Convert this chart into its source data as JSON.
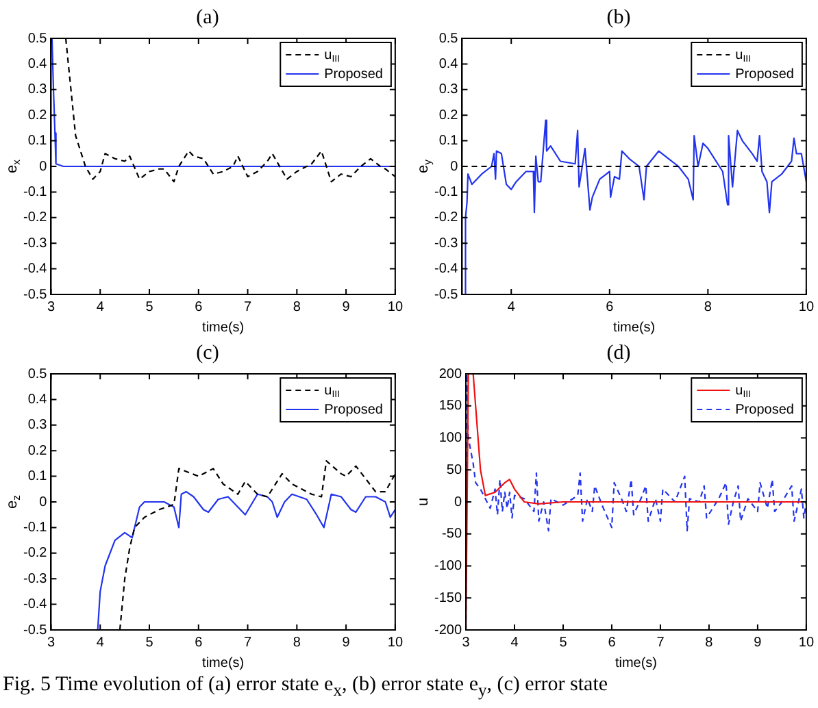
{
  "chart_data": [
    {
      "type": "line",
      "title": "(a)",
      "xlabel": "time(s)",
      "ylabel": "e$_{x}$",
      "xlim": [
        3,
        10
      ],
      "xticks": [
        3,
        4,
        5,
        6,
        7,
        8,
        9,
        10
      ],
      "ylim": [
        -0.5,
        0.5
      ],
      "yticks": [
        -0.5,
        -0.4,
        -0.3,
        -0.2,
        -0.1,
        0,
        0.1,
        0.2,
        0.3,
        0.4,
        0.5
      ],
      "grid": false,
      "legend": "top right",
      "annotations": [
        "Fig. 5 Time evolution of (a) error state e$_{x}$, (b) error state e$_{y}$, (c) error state"
      ],
      "series": [
        {
          "name": "u$_{III}$",
          "color": "#000000",
          "line_style": "dashed",
          "x": [
            3.3,
            3.5,
            3.7,
            3.85,
            4.0,
            4.1,
            4.3,
            4.5,
            4.6,
            4.8,
            5.0,
            5.2,
            5.3,
            5.5,
            5.6,
            5.8,
            5.9,
            6.1,
            6.3,
            6.5,
            6.7,
            6.8,
            7.0,
            7.2,
            7.4,
            7.5,
            7.8,
            8.0,
            8.3,
            8.5,
            8.7,
            8.9,
            9.1,
            9.3,
            9.5,
            9.7,
            9.8,
            10.0
          ],
          "values": [
            0.5,
            0.12,
            0.0,
            -0.05,
            -0.02,
            0.05,
            0.03,
            0.02,
            0.04,
            -0.05,
            -0.02,
            -0.01,
            -0.01,
            -0.06,
            0.0,
            0.06,
            0.04,
            0.03,
            -0.03,
            -0.02,
            0.0,
            0.04,
            -0.04,
            -0.02,
            0.02,
            0.05,
            -0.05,
            -0.02,
            0.01,
            0.06,
            -0.06,
            -0.03,
            -0.04,
            0.0,
            0.03,
            0.0,
            -0.01,
            -0.04
          ]
        },
        {
          "name": "Proposed",
          "color": "#2233ee",
          "line_style": "solid",
          "x": [
            3.02,
            3.05,
            3.08,
            3.1,
            3.25,
            10.0
          ],
          "values": [
            0.5,
            0.3,
            0.13,
            0.01,
            0,
            0
          ]
        }
      ]
    },
    {
      "type": "line",
      "title": "(b)",
      "xlabel": "time(s)",
      "ylabel": "e$_{y}$",
      "xlim": [
        3,
        10
      ],
      "xticks": [
        4,
        6,
        8,
        10
      ],
      "ylim": [
        -0.5,
        0.5
      ],
      "yticks": [
        -0.5,
        -0.4,
        -0.3,
        -0.2,
        -0.1,
        0,
        0.1,
        0.2,
        0.3,
        0.4,
        0.5
      ],
      "grid": false,
      "legend": "top right",
      "series": [
        {
          "name": "u$_{III}$",
          "color": "#000000",
          "line_style": "dashed",
          "x": [
            3,
            10
          ],
          "values": [
            0,
            0
          ]
        },
        {
          "name": "Proposed",
          "color": "#2233ee",
          "line_style": "solid",
          "x": [
            3.05,
            3.07,
            3.1,
            3.12,
            3.2,
            3.4,
            3.6,
            3.65,
            3.68,
            3.7,
            3.8,
            3.9,
            4.0,
            4.1,
            4.3,
            4.45,
            4.47,
            4.5,
            4.55,
            4.6,
            4.7,
            4.72,
            4.8,
            5.0,
            5.3,
            5.35,
            5.38,
            5.5,
            5.6,
            5.65,
            5.8,
            6.0,
            6.02,
            6.1,
            6.2,
            6.25,
            6.4,
            6.6,
            6.7,
            6.75,
            7.0,
            7.2,
            7.4,
            7.6,
            7.7,
            7.72,
            7.8,
            7.9,
            8.0,
            8.3,
            8.4,
            8.42,
            8.5,
            8.6,
            8.7,
            8.9,
            9.0,
            9.05,
            9.1,
            9.2,
            9.25,
            9.3,
            9.5,
            9.7,
            9.75,
            9.8,
            9.9,
            10.0
          ],
          "values": [
            -0.5,
            -0.2,
            -0.14,
            -0.03,
            -0.07,
            -0.03,
            0.0,
            0.05,
            -0.05,
            0.06,
            0.05,
            -0.07,
            -0.09,
            -0.06,
            -0.02,
            -0.02,
            -0.18,
            0.04,
            -0.06,
            -0.06,
            0.18,
            0.06,
            0.08,
            0.02,
            0.01,
            0.14,
            -0.08,
            0.07,
            -0.17,
            -0.12,
            -0.05,
            -0.02,
            -0.12,
            -0.04,
            -0.05,
            0.06,
            0.03,
            0.0,
            -0.13,
            0.0,
            0.06,
            0.03,
            0.0,
            -0.05,
            -0.13,
            0.12,
            0.0,
            0.09,
            0.07,
            -0.02,
            -0.15,
            0.12,
            -0.08,
            0.14,
            0.1,
            0.05,
            0.02,
            0.12,
            -0.02,
            -0.06,
            -0.18,
            -0.06,
            -0.03,
            0.02,
            0.11,
            0.05,
            0.05,
            -0.06
          ]
        }
      ]
    },
    {
      "type": "line",
      "title": "(c)",
      "xlabel": "time(s)",
      "ylabel": "e$_{z}$",
      "xlim": [
        3,
        10
      ],
      "xticks": [
        3,
        4,
        5,
        6,
        7,
        8,
        9,
        10
      ],
      "ylim": [
        -0.5,
        0.5
      ],
      "yticks": [
        -0.5,
        -0.4,
        -0.3,
        -0.2,
        -0.1,
        0,
        0.1,
        0.2,
        0.3,
        0.4,
        0.5
      ],
      "grid": false,
      "legend": "top right",
      "series": [
        {
          "name": "u$_{III}$",
          "color": "#000000",
          "line_style": "dashed",
          "x": [
            4.4,
            4.5,
            4.6,
            4.7,
            4.9,
            5.2,
            5.5,
            5.6,
            6.0,
            6.3,
            6.5,
            6.8,
            6.95,
            7.2,
            7.4,
            7.7,
            7.9,
            8.3,
            8.5,
            8.6,
            8.9,
            9.0,
            9.2,
            9.6,
            9.8,
            10.0
          ],
          "values": [
            -0.5,
            -0.3,
            -0.18,
            -0.1,
            -0.06,
            -0.03,
            -0.01,
            0.13,
            0.1,
            0.13,
            0.07,
            0.03,
            0.08,
            0.03,
            0.02,
            0.11,
            0.07,
            0.03,
            0.02,
            0.16,
            0.11,
            0.1,
            0.14,
            0.04,
            0.04,
            0.11
          ]
        },
        {
          "name": "Proposed",
          "color": "#2233ee",
          "line_style": "solid",
          "x": [
            3.95,
            4.0,
            4.1,
            4.3,
            4.5,
            4.65,
            4.8,
            4.9,
            5.3,
            5.5,
            5.6,
            5.65,
            5.75,
            5.9,
            6.1,
            6.2,
            6.4,
            6.6,
            6.8,
            6.95,
            7.2,
            7.4,
            7.5,
            7.6,
            7.75,
            7.9,
            8.2,
            8.4,
            8.55,
            8.7,
            8.9,
            9.1,
            9.2,
            9.4,
            9.6,
            9.8,
            9.9,
            10.0
          ],
          "values": [
            -0.5,
            -0.35,
            -0.25,
            -0.15,
            -0.12,
            -0.14,
            -0.02,
            0.0,
            0.0,
            -0.02,
            -0.1,
            0.03,
            0.04,
            0.02,
            -0.03,
            -0.04,
            0.01,
            0.02,
            -0.02,
            -0.05,
            0.03,
            0.02,
            0.0,
            -0.06,
            0.0,
            0.03,
            0.01,
            -0.05,
            -0.1,
            0.03,
            0.02,
            -0.03,
            -0.04,
            0.02,
            0.02,
            0.0,
            -0.06,
            -0.03
          ]
        }
      ]
    },
    {
      "type": "line",
      "title": "(d)",
      "xlabel": "time(s)",
      "ylabel": "u",
      "xlim": [
        3,
        10
      ],
      "xticks": [
        3,
        4,
        5,
        6,
        7,
        8,
        9,
        10
      ],
      "ylim": [
        -200,
        200
      ],
      "yticks": [
        -200,
        -150,
        -100,
        -50,
        0,
        50,
        100,
        150,
        200
      ],
      "grid": false,
      "legend": "top right",
      "series": [
        {
          "name": "u$_{III}$",
          "color": "#ee1111",
          "line_style": "solid",
          "x": [
            3.0,
            3.05,
            3.15,
            3.2,
            3.3,
            3.4,
            3.6,
            3.8,
            3.9,
            4.0,
            4.2,
            4.5,
            5,
            6,
            7,
            8,
            9,
            10
          ],
          "values": [
            -200,
            200,
            200,
            150,
            50,
            10,
            15,
            30,
            35,
            20,
            0,
            -3,
            0,
            0,
            0,
            0,
            0,
            0
          ]
        },
        {
          "name": "Proposed",
          "color": "#2233ee",
          "line_style": "dashed",
          "x": [
            3.0,
            3.02,
            3.05,
            3.1,
            3.15,
            3.2,
            3.3,
            3.4,
            3.5,
            3.6,
            3.65,
            3.7,
            3.75,
            3.8,
            3.85,
            3.9,
            3.95,
            4.0,
            4.2,
            4.4,
            4.45,
            4.5,
            4.6,
            4.7,
            4.75,
            5.0,
            5.3,
            5.35,
            5.4,
            5.5,
            5.6,
            5.65,
            5.8,
            6.0,
            6.05,
            6.2,
            6.3,
            6.4,
            6.45,
            6.6,
            6.7,
            6.75,
            6.9,
            7.0,
            7.05,
            7.3,
            7.5,
            7.55,
            7.6,
            7.8,
            7.9,
            7.95,
            8.2,
            8.35,
            8.4,
            8.5,
            8.6,
            8.65,
            8.8,
            9.0,
            9.05,
            9.2,
            9.3,
            9.35,
            9.5,
            9.7,
            9.75,
            9.9,
            9.95,
            10
          ],
          "values": [
            -200,
            200,
            100,
            80,
            60,
            30,
            20,
            5,
            -10,
            20,
            -20,
            35,
            -15,
            15,
            -10,
            15,
            -25,
            10,
            5,
            -15,
            45,
            -30,
            0,
            -45,
            5,
            -5,
            10,
            45,
            -30,
            5,
            -15,
            25,
            -5,
            -40,
            30,
            5,
            -15,
            35,
            -20,
            5,
            25,
            -30,
            5,
            -30,
            20,
            0,
            40,
            -45,
            5,
            0,
            25,
            -25,
            5,
            30,
            -35,
            0,
            25,
            -30,
            5,
            -15,
            30,
            -10,
            35,
            -15,
            0,
            25,
            -30,
            20,
            -25,
            0
          ]
        }
      ]
    }
  ]
}
